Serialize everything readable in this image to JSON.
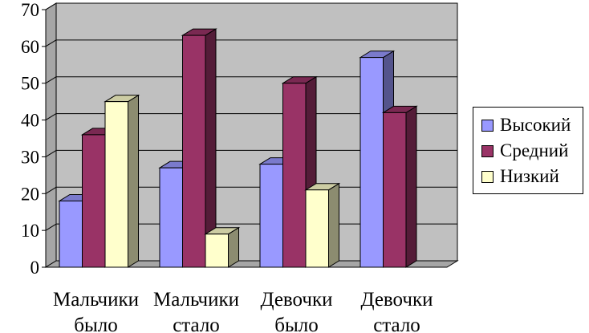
{
  "chart_data": {
    "type": "bar",
    "categories": [
      [
        "Мальчики",
        "было"
      ],
      [
        "Мальчики",
        "стало"
      ],
      [
        "Девочки",
        "было"
      ],
      [
        "Девочки",
        "стало"
      ]
    ],
    "series": [
      {
        "name": "Высокий",
        "values": [
          18,
          27,
          28,
          57
        ],
        "color": "#9999ff"
      },
      {
        "name": "Средний",
        "values": [
          36,
          63,
          50,
          42
        ],
        "color": "#993366"
      },
      {
        "name": "Низкий",
        "values": [
          45,
          9,
          21,
          0
        ],
        "color": "#ffffcc"
      }
    ],
    "yticks": [
      0,
      10,
      20,
      30,
      40,
      50,
      60,
      70
    ],
    "ylim": [
      0,
      70
    ],
    "grid": true,
    "legend": "right",
    "plot_color": "#c0c0c0",
    "three_d": true
  }
}
